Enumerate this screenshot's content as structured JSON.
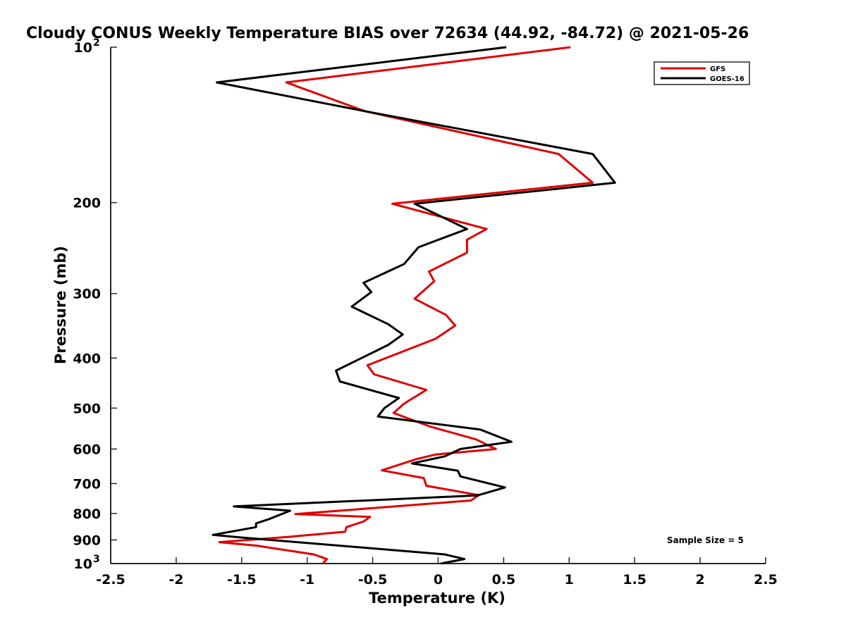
{
  "chart_data": {
    "type": "line",
    "title": "Cloudy CONUS Weekly Temperature BIAS over 72634 (44.92, -84.72) @ 2021-05-26",
    "xlabel": "Temperature (K)",
    "ylabel": "Pressure (mb)",
    "xlim": [
      -2.5,
      2.5
    ],
    "ylim": [
      100,
      1000
    ],
    "y_scale": "log",
    "y_reversed": true,
    "x_ticks": [
      "-2.5",
      "-2",
      "-1.5",
      "-1",
      "-0.5",
      "0",
      "0.5",
      "1",
      "1.5",
      "2",
      "2.5"
    ],
    "y_ticks": [
      {
        "value": 100,
        "base": "10",
        "exp": "2"
      },
      {
        "value": 200,
        "label": "200"
      },
      {
        "value": 300,
        "label": "300"
      },
      {
        "value": 400,
        "label": "400"
      },
      {
        "value": 500,
        "label": "500"
      },
      {
        "value": 600,
        "label": "600"
      },
      {
        "value": 700,
        "label": "700"
      },
      {
        "value": 800,
        "label": "800"
      },
      {
        "value": 900,
        "label": "900"
      },
      {
        "value": 1000,
        "base": "10",
        "exp": "3"
      }
    ],
    "grid": false,
    "legend_position": "top-right",
    "annotation": "Sample Size = 5",
    "series": [
      {
        "name": "GFS",
        "color": "#e00000",
        "points": [
          [
            1.01,
            100
          ],
          [
            -1.16,
            117
          ],
          [
            -0.56,
            133
          ],
          [
            0.92,
            161
          ],
          [
            1.18,
            183
          ],
          [
            -0.35,
            201
          ],
          [
            0.37,
            225
          ],
          [
            0.22,
            236
          ],
          [
            0.22,
            250
          ],
          [
            -0.07,
            272
          ],
          [
            -0.03,
            284
          ],
          [
            -0.18,
            307
          ],
          [
            0.06,
            330
          ],
          [
            0.13,
            346
          ],
          [
            -0.02,
            367
          ],
          [
            -0.54,
            413
          ],
          [
            -0.49,
            430
          ],
          [
            -0.09,
            461
          ],
          [
            -0.26,
            490
          ],
          [
            -0.34,
            511
          ],
          [
            -0.06,
            543
          ],
          [
            0.29,
            575
          ],
          [
            0.44,
            600
          ],
          [
            -0.02,
            615
          ],
          [
            -0.17,
            628
          ],
          [
            -0.43,
            660
          ],
          [
            -0.11,
            683
          ],
          [
            -0.09,
            707
          ],
          [
            0.31,
            737
          ],
          [
            0.25,
            755
          ],
          [
            -1.09,
            802
          ],
          [
            -0.52,
            812
          ],
          [
            -0.57,
            829
          ],
          [
            -0.7,
            850
          ],
          [
            -0.71,
            868
          ],
          [
            -1.15,
            888
          ],
          [
            -1.67,
            909
          ],
          [
            -1.39,
            923
          ],
          [
            -0.95,
            960
          ],
          [
            -0.85,
            980
          ],
          [
            -0.88,
            1000
          ]
        ]
      },
      {
        "name": "GOES-16",
        "color": "#000000",
        "points": [
          [
            0.52,
            100
          ],
          [
            -1.69,
            117
          ],
          [
            -0.56,
            133
          ],
          [
            1.18,
            161
          ],
          [
            1.35,
            183
          ],
          [
            -0.18,
            201
          ],
          [
            0.22,
            225
          ],
          [
            -0.15,
            244
          ],
          [
            -0.26,
            263
          ],
          [
            -0.57,
            286
          ],
          [
            -0.51,
            298
          ],
          [
            -0.66,
            318
          ],
          [
            -0.38,
            344
          ],
          [
            -0.27,
            360
          ],
          [
            -0.38,
            377
          ],
          [
            -0.78,
            423
          ],
          [
            -0.75,
            444
          ],
          [
            -0.3,
            478
          ],
          [
            -0.41,
            500
          ],
          [
            -0.46,
            519
          ],
          [
            0.32,
            550
          ],
          [
            0.56,
            581
          ],
          [
            0.17,
            600
          ],
          [
            0.05,
            620
          ],
          [
            -0.2,
            640
          ],
          [
            0.15,
            661
          ],
          [
            0.17,
            678
          ],
          [
            0.51,
            712
          ],
          [
            0.3,
            738
          ],
          [
            -1.56,
            775
          ],
          [
            -1.13,
            790
          ],
          [
            -1.29,
            820
          ],
          [
            -1.39,
            836
          ],
          [
            -1.39,
            850
          ],
          [
            -1.72,
            880
          ],
          [
            -1.51,
            890
          ],
          [
            0.05,
            960
          ],
          [
            0.2,
            980
          ],
          [
            0.02,
            1000
          ]
        ]
      }
    ]
  }
}
